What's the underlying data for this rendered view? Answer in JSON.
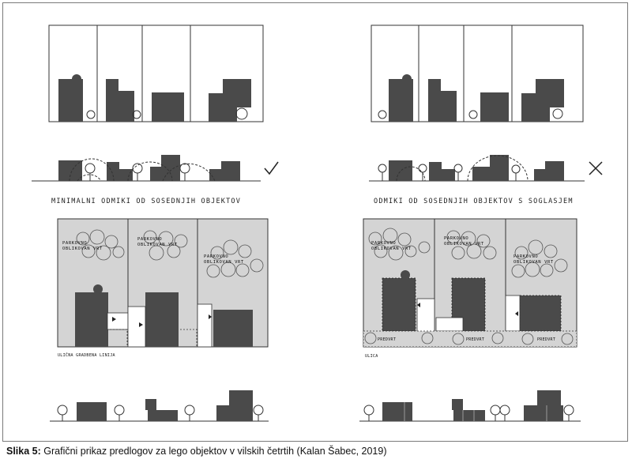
{
  "labels": {
    "left_section": "MINIMALNI ODMIKI OD SOSEDNJIH OBJEKTOV",
    "right_section": "ODMIKI OD SOSEDNJIH OBJEKTOV S SOGLASJEM",
    "garden": [
      "PARKOVNO",
      "OBLIKOVAN VRT"
    ],
    "street_line": "ULIČNA GRADBENA LINIJA",
    "street": "ULICA",
    "front_garden": "PREDVRT"
  },
  "marks": {
    "check": "check-icon",
    "cross": "cross-icon"
  },
  "caption": {
    "prefix": "Slika 5:",
    "text": " Grafični prikaz predlogov za lego objektov v vilskih četrtih (Kalan Šabec, 2019)"
  },
  "colors": {
    "building": "#4a4a4a",
    "lot": "#d4d4d4",
    "line": "#333333"
  }
}
